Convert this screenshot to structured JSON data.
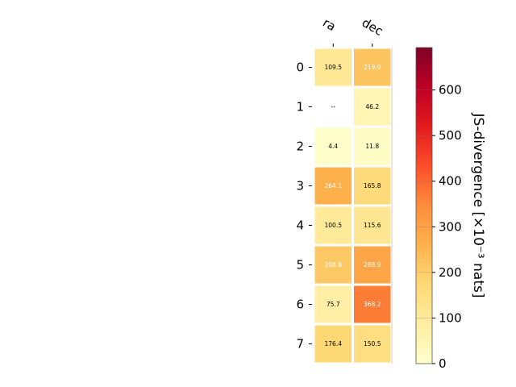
{
  "chart_data": {
    "type": "heatmap",
    "title": "",
    "columns": [
      "ra",
      "dec"
    ],
    "rows": [
      "0",
      "1",
      "2",
      "3",
      "4",
      "5",
      "6",
      "7"
    ],
    "values": [
      [
        109.5,
        219.9
      ],
      [
        null,
        46.2
      ],
      [
        4.4,
        11.8
      ],
      [
        264.1,
        165.8
      ],
      [
        100.5,
        115.6
      ],
      [
        208.8,
        288.9
      ],
      [
        75.7,
        368.2
      ],
      [
        176.4,
        150.5
      ]
    ],
    "labels": [
      [
        "109.5",
        "219.9"
      ],
      [
        "--",
        "46.2"
      ],
      [
        "4.4",
        "11.8"
      ],
      [
        "264.1",
        "165.8"
      ],
      [
        "100.5",
        "115.6"
      ],
      [
        "208.8",
        "288.9"
      ],
      [
        "75.7",
        "368.2"
      ],
      [
        "176.4",
        "150.5"
      ]
    ],
    "colorbar": {
      "label": "JS-divergence [×10⁻³ nats]",
      "range": [
        0,
        693
      ],
      "ticks": [
        0,
        100,
        200,
        300,
        400,
        500,
        600
      ],
      "colormap": "YlOrRd"
    }
  }
}
